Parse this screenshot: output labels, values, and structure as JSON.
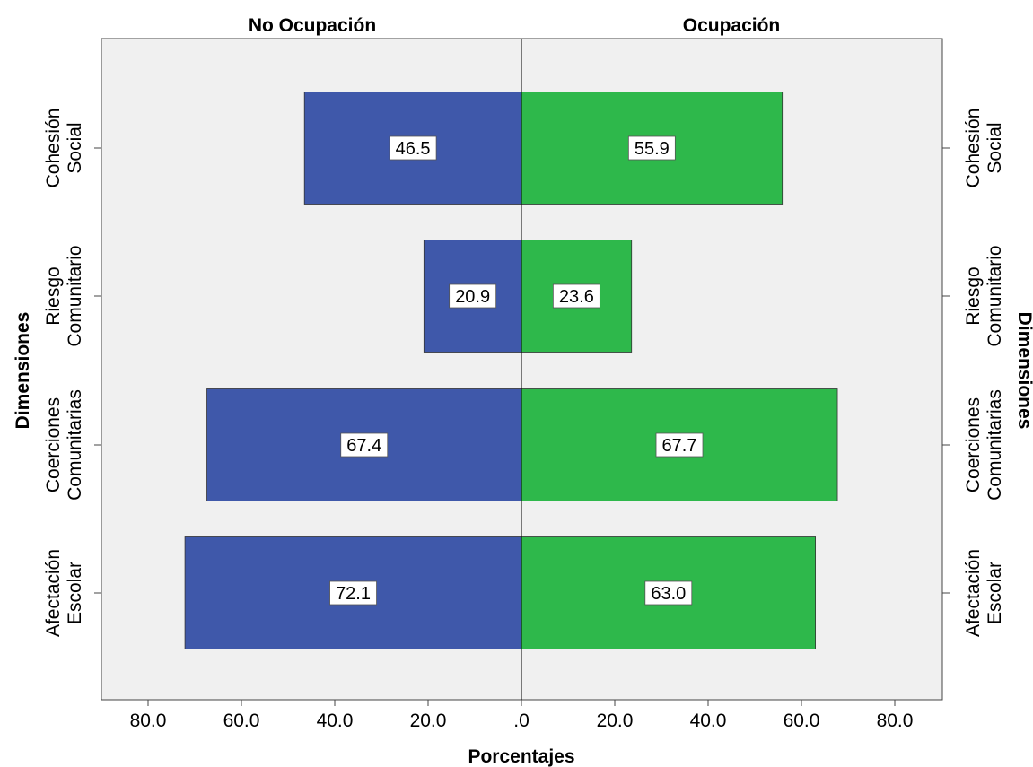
{
  "chart_data": {
    "type": "bar",
    "orientation": "horizontal",
    "layout": "back-to-back",
    "categories": [
      [
        "Cohesión",
        "Social"
      ],
      [
        "Riesgo",
        "Comunitario"
      ],
      [
        "Coerciones",
        "Comunitarias"
      ],
      [
        "Afectación",
        "Escolar"
      ]
    ],
    "series": [
      {
        "name": "No Ocupación",
        "side": "left",
        "color": "#3f58aa",
        "values": [
          46.5,
          20.9,
          67.4,
          72.1
        ]
      },
      {
        "name": "Ocupación",
        "side": "right",
        "color": "#2eb84b",
        "values": [
          55.9,
          23.6,
          67.7,
          63.0
        ]
      }
    ],
    "data_labels": {
      "left": [
        "46.5",
        "20.9",
        "67.4",
        "72.1"
      ],
      "right": [
        "55.9",
        "23.6",
        "67.7",
        "63.0"
      ]
    },
    "xlabel": "Porcentajes",
    "ylabel_left": "Dimensiones",
    "ylabel_right": "Dimensiones",
    "xlim": [
      0,
      90
    ],
    "x_ticks": [
      80,
      60,
      40,
      20,
      0,
      20,
      40,
      60,
      80
    ],
    "x_tick_labels": [
      "80.0",
      "60.0",
      "40.0",
      "20.0",
      ".0",
      "20.0",
      "40.0",
      "60.0",
      "80.0"
    ],
    "grid": false,
    "plot_background": "#f0f0f0"
  }
}
